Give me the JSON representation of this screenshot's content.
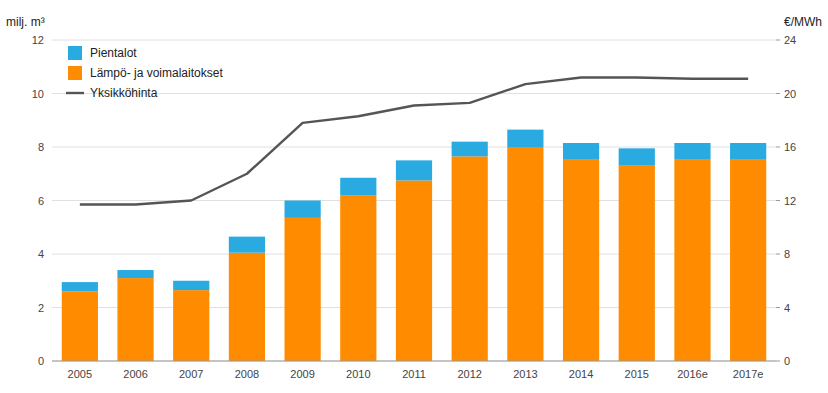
{
  "chart_data": {
    "type": "bar",
    "stacked": true,
    "categories": [
      "2005",
      "2006",
      "2007",
      "2008",
      "2009",
      "2010",
      "2011",
      "2012",
      "2013",
      "2014",
      "2015",
      "2016e",
      "2017e"
    ],
    "series": [
      {
        "name": "Lämpö- ja voimalaitokset",
        "type": "bar",
        "color": "#FF8C00",
        "values": [
          2.6,
          3.1,
          2.65,
          4.05,
          5.35,
          6.2,
          6.75,
          7.65,
          8.0,
          7.55,
          7.3,
          7.55,
          7.55
        ]
      },
      {
        "name": "Pientalot",
        "type": "bar",
        "color": "#29ABE2",
        "values": [
          0.35,
          0.3,
          0.35,
          0.6,
          0.65,
          0.65,
          0.75,
          0.55,
          0.65,
          0.6,
          0.65,
          0.6,
          0.6
        ]
      },
      {
        "name": "Yksikköhinta",
        "type": "line",
        "axis": "y2",
        "color": "#555555",
        "values": [
          11.7,
          11.7,
          12.0,
          14.0,
          17.8,
          18.3,
          19.1,
          19.3,
          20.7,
          21.2,
          21.2,
          21.1,
          21.1
        ]
      }
    ],
    "ylabel": "milj. m³",
    "y2label": "€/MWh",
    "ylim": [
      0,
      12
    ],
    "yticks": [
      0,
      2,
      4,
      6,
      8,
      10,
      12
    ],
    "y2lim": [
      0,
      24
    ],
    "y2ticks": [
      0,
      4,
      8,
      12,
      16,
      20,
      24
    ],
    "grid": true,
    "legend": "upper left"
  }
}
